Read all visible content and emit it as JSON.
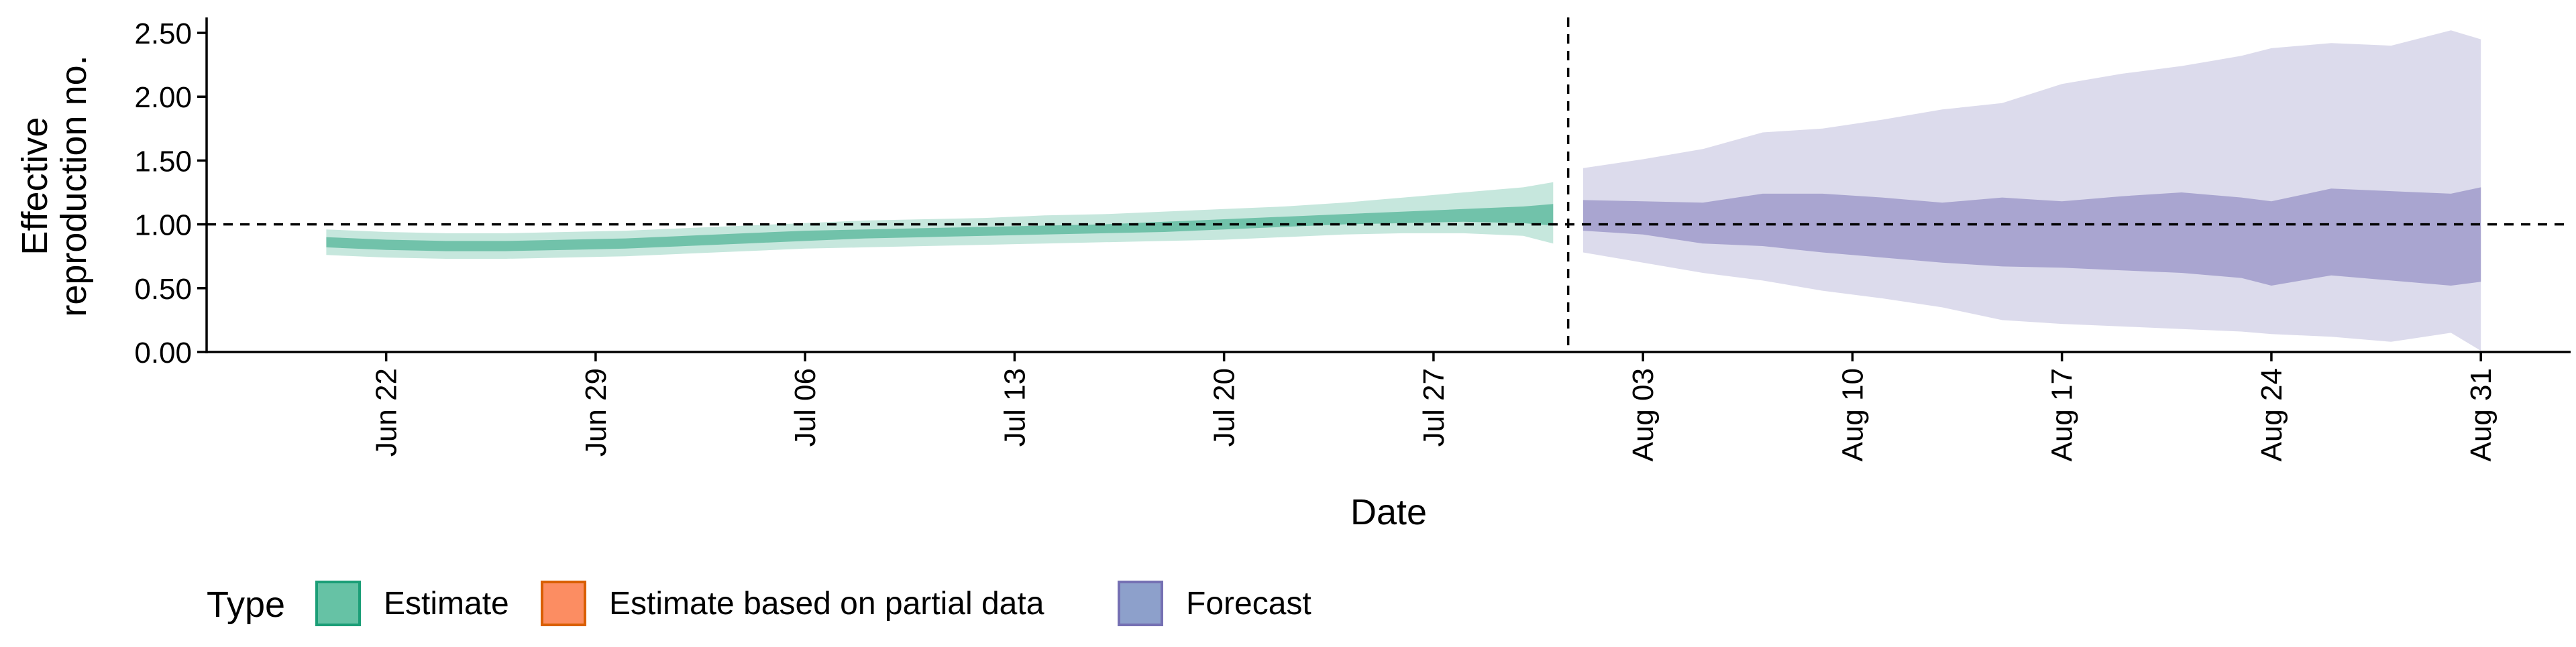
{
  "chart_data": {
    "type": "area",
    "xlabel": "Date",
    "ylabel_lines": [
      "Effective",
      "reproduction no."
    ],
    "ylim": [
      0,
      2.6
    ],
    "y_ticks": [
      0,
      0.5,
      1.0,
      1.5,
      2.0,
      2.5
    ],
    "y_tick_labels": [
      "0.00",
      "0.50",
      "1.00",
      "1.50",
      "2.00",
      "2.50"
    ],
    "x_range": [
      "2020-06-16",
      "2020-09-03"
    ],
    "x_ticks": [
      "2020-06-22",
      "2020-06-29",
      "2020-07-06",
      "2020-07-13",
      "2020-07-20",
      "2020-07-27",
      "2020-08-03",
      "2020-08-10",
      "2020-08-17",
      "2020-08-24",
      "2020-08-31"
    ],
    "x_tick_labels": [
      "Jun 22",
      "Jun 29",
      "Jul 06",
      "Jul 13",
      "Jul 20",
      "Jul 27",
      "Aug 03",
      "Aug 10",
      "Aug 17",
      "Aug 24",
      "Aug 31"
    ],
    "reference_line_y": 1.0,
    "forecast_start": "2020-08-01",
    "legend": {
      "title": "Type",
      "position": "bottom",
      "items": [
        {
          "label": "Estimate",
          "color": "#66C2A5",
          "border": "#1B9E77"
        },
        {
          "label": "Estimate based on partial data",
          "color": "#FC8D62",
          "border": "#D95F02"
        },
        {
          "label": "Forecast",
          "color": "#8DA0CB",
          "border": "#7570B3"
        }
      ]
    },
    "series": [
      {
        "name": "Estimate",
        "color": "#1B9E77",
        "dates": [
          "2020-06-20",
          "2020-06-22",
          "2020-06-24",
          "2020-06-26",
          "2020-06-28",
          "2020-06-30",
          "2020-07-02",
          "2020-07-04",
          "2020-07-06",
          "2020-07-08",
          "2020-07-10",
          "2020-07-12",
          "2020-07-14",
          "2020-07-16",
          "2020-07-18",
          "2020-07-20",
          "2020-07-22",
          "2020-07-24",
          "2020-07-26",
          "2020-07-28",
          "2020-07-30",
          "2020-07-31"
        ],
        "lower90": [
          0.76,
          0.74,
          0.73,
          0.73,
          0.74,
          0.75,
          0.77,
          0.79,
          0.81,
          0.82,
          0.83,
          0.84,
          0.85,
          0.86,
          0.87,
          0.88,
          0.9,
          0.92,
          0.93,
          0.93,
          0.91,
          0.85
        ],
        "lower50": [
          0.82,
          0.8,
          0.79,
          0.79,
          0.8,
          0.81,
          0.83,
          0.85,
          0.87,
          0.89,
          0.9,
          0.91,
          0.92,
          0.93,
          0.94,
          0.96,
          0.98,
          1.0,
          1.01,
          1.02,
          1.01,
          0.99
        ],
        "upper50": [
          0.9,
          0.88,
          0.87,
          0.87,
          0.88,
          0.89,
          0.91,
          0.93,
          0.95,
          0.96,
          0.97,
          0.98,
          0.99,
          1.0,
          1.02,
          1.04,
          1.06,
          1.08,
          1.1,
          1.12,
          1.14,
          1.16
        ],
        "upper90": [
          0.96,
          0.94,
          0.93,
          0.93,
          0.94,
          0.95,
          0.97,
          0.99,
          1.01,
          1.03,
          1.04,
          1.05,
          1.07,
          1.08,
          1.1,
          1.12,
          1.14,
          1.17,
          1.21,
          1.25,
          1.29,
          1.33
        ]
      },
      {
        "name": "Forecast",
        "color": "#7570B3",
        "dates": [
          "2020-08-01",
          "2020-08-03",
          "2020-08-05",
          "2020-08-07",
          "2020-08-09",
          "2020-08-11",
          "2020-08-13",
          "2020-08-15",
          "2020-08-17",
          "2020-08-19",
          "2020-08-21",
          "2020-08-23",
          "2020-08-24",
          "2020-08-26",
          "2020-08-28",
          "2020-08-30",
          "2020-08-31"
        ],
        "lower90": [
          0.78,
          0.7,
          0.62,
          0.56,
          0.48,
          0.42,
          0.35,
          0.25,
          0.22,
          0.2,
          0.18,
          0.16,
          0.14,
          0.12,
          0.08,
          0.15,
          0.01
        ],
        "lower50": [
          0.95,
          0.92,
          0.85,
          0.83,
          0.78,
          0.74,
          0.7,
          0.67,
          0.66,
          0.64,
          0.62,
          0.58,
          0.52,
          0.6,
          0.56,
          0.52,
          0.55
        ],
        "upper50": [
          1.19,
          1.18,
          1.17,
          1.24,
          1.24,
          1.21,
          1.17,
          1.21,
          1.18,
          1.22,
          1.25,
          1.21,
          1.18,
          1.28,
          1.26,
          1.24,
          1.29
        ],
        "upper90": [
          1.44,
          1.51,
          1.59,
          1.72,
          1.75,
          1.82,
          1.9,
          1.95,
          2.1,
          2.18,
          2.24,
          2.32,
          2.38,
          2.42,
          2.4,
          2.52,
          2.45
        ]
      }
    ]
  }
}
